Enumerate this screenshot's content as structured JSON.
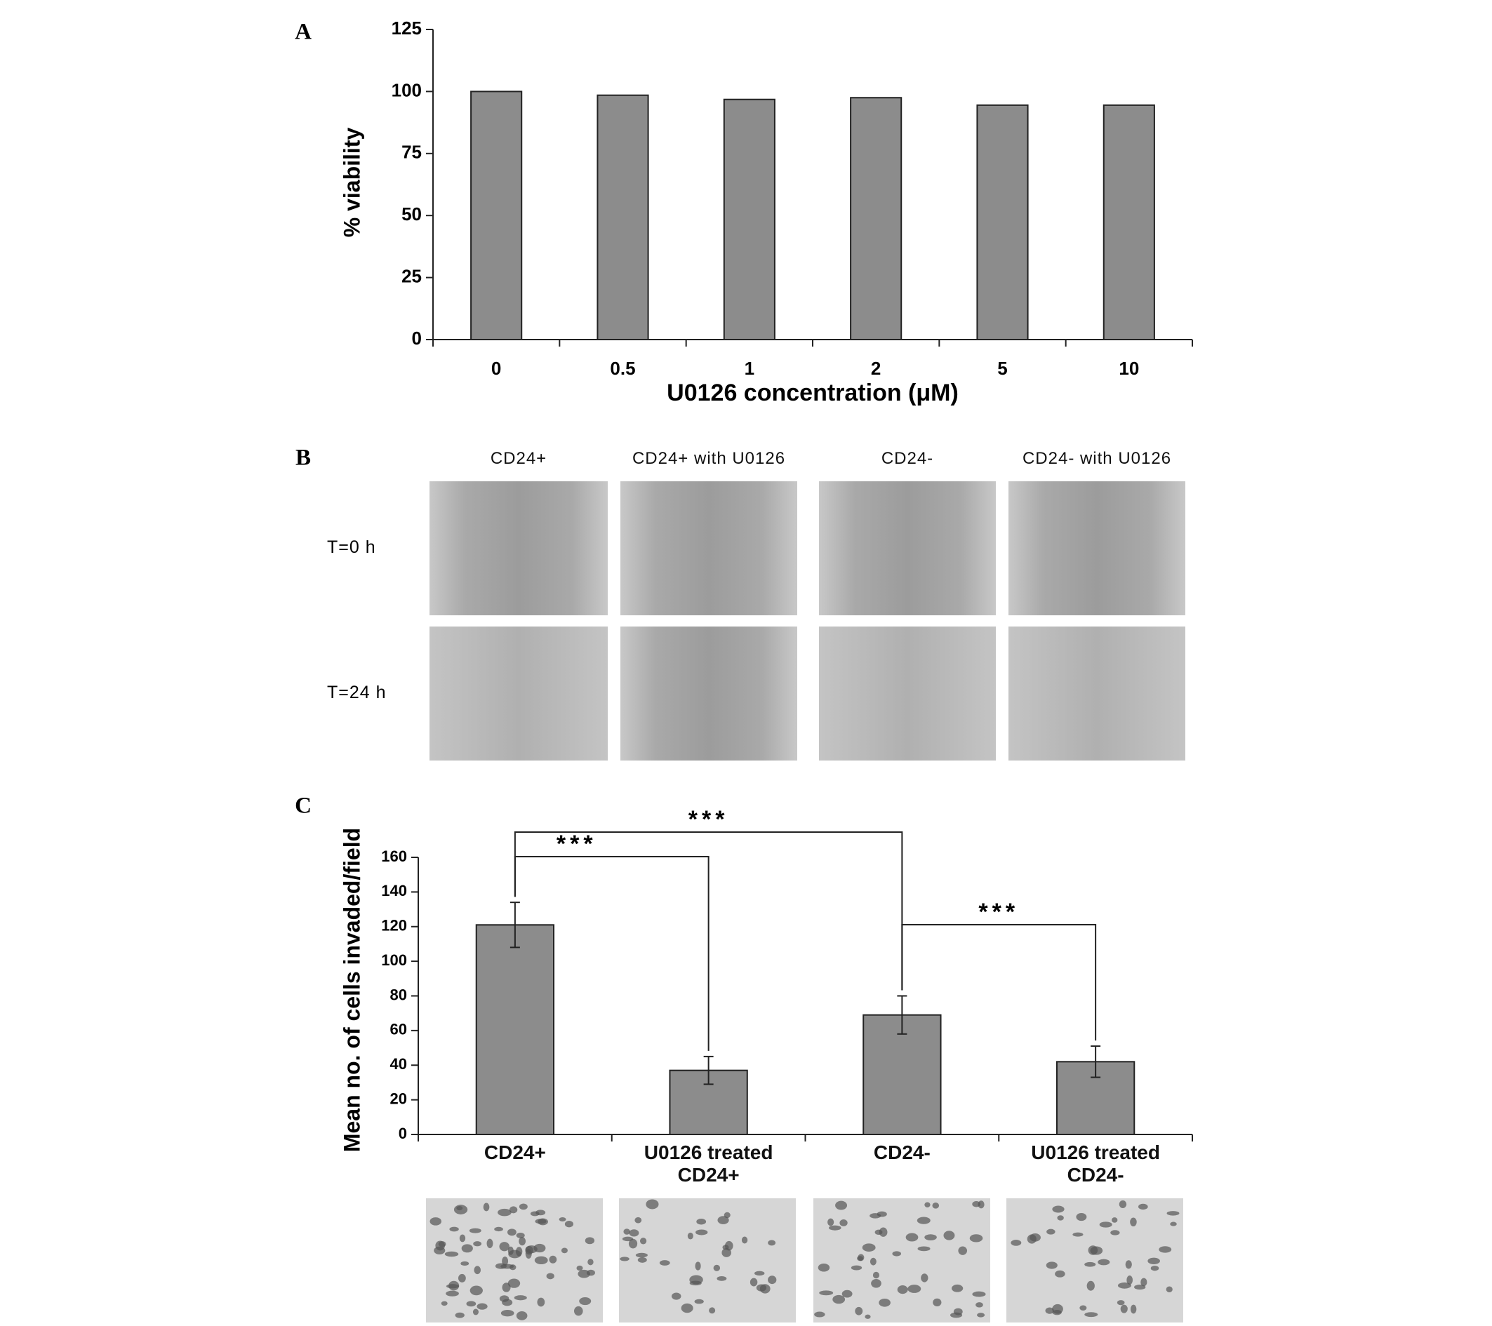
{
  "panel_labels": [
    "A",
    "B",
    "C"
  ],
  "chart_data": [
    {
      "type": "bar",
      "categories": [
        "0",
        "0.5",
        "1",
        "2",
        "5",
        "10"
      ],
      "values": [
        100,
        98.5,
        96.8,
        97.5,
        94.5,
        94.5
      ],
      "color": "#8c8c8c",
      "xlabel": "U0126 concentration (μM)",
      "ylabel": "% viability",
      "ylim": [
        0,
        125
      ],
      "yticks": [
        0,
        25,
        50,
        75,
        100,
        125
      ]
    },
    {
      "type": "bar",
      "categories": [
        "CD24+",
        "U0126 treated CD24+",
        "CD24-",
        "U0126 treated CD24-"
      ],
      "values": [
        121,
        37,
        69,
        42
      ],
      "errors": [
        13,
        8,
        11,
        9
      ],
      "color": "#8c8c8c",
      "ylabel": "Mean no. of cells invaded/field",
      "ylim": [
        0,
        160
      ],
      "yticks": [
        0,
        20,
        40,
        60,
        80,
        100,
        120,
        140,
        160
      ],
      "annotations": [
        "***",
        "***",
        "***"
      ]
    }
  ],
  "wound_assay": {
    "columns": [
      "CD24+",
      "CD24+ with U0126",
      "CD24-",
      "CD24- with U0126"
    ],
    "rows": [
      "T=0 h",
      "T=24 h"
    ]
  }
}
